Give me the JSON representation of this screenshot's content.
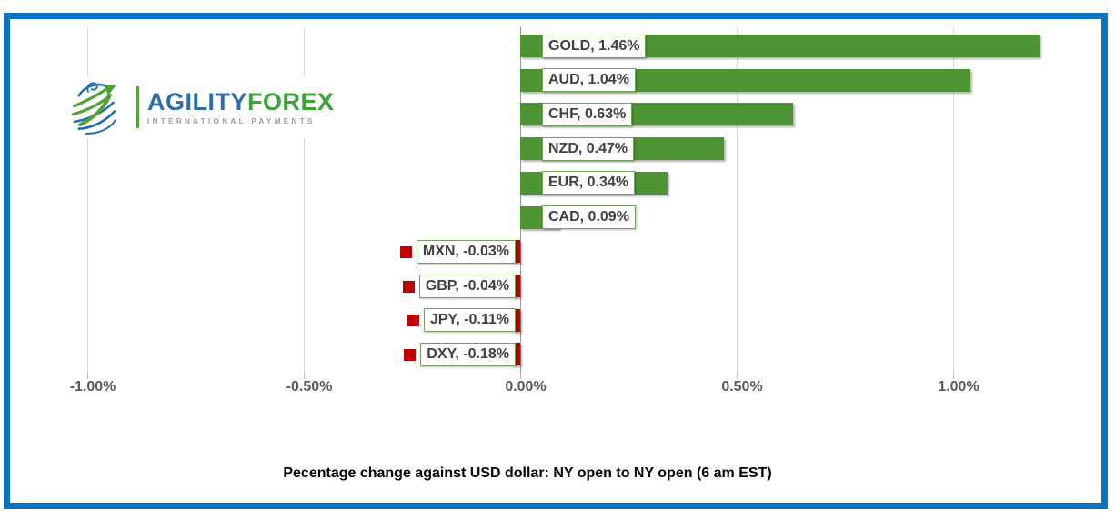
{
  "frame": {
    "border_color": "#0b72c0"
  },
  "logo": {
    "brand_part1": "AGILITY",
    "brand_part2": "FOREX",
    "tagline": "INTERNATIONAL PAYMENTS",
    "blue": "#2b6dad",
    "green": "#3aa335"
  },
  "title": "Pecentage change against USD dollar: NY open to NY open  (6 am EST)",
  "chart_data": {
    "type": "bar",
    "orientation": "horizontal",
    "title": "Pecentage change against USD dollar: NY open to NY open  (6 am EST)",
    "categories": [
      "GOLD",
      "AUD",
      "CHF",
      "NZD",
      "EUR",
      "CAD",
      "MXN",
      "GBP",
      "JPY",
      "DXY"
    ],
    "values": [
      1.46,
      1.04,
      0.63,
      0.47,
      0.34,
      0.09,
      -0.03,
      -0.04,
      -0.11,
      -0.18
    ],
    "labels": [
      "GOLD, 1.46%",
      "AUD, 1.04%",
      "CHF, 0.63%",
      "NZD, 0.47%",
      "EUR, 0.34%",
      "CAD, 0.09%",
      "MXN, -0.03%",
      "GBP, -0.04%",
      "JPY, -0.11%",
      "DXY, -0.18%"
    ],
    "x_ticks": [
      "-1.00%",
      "-0.50%",
      "0.00%",
      "0.50%",
      "1.00%"
    ],
    "x_tick_values": [
      -1.0,
      -0.5,
      0.0,
      0.5,
      1.0
    ],
    "xlim": [
      -1.13,
      1.2
    ],
    "grid": true,
    "legend_position": "none",
    "positive_color": "#4e9434",
    "negative_color": "#c00000",
    "label_border_color": "#71a45a",
    "gridline_color": "#d9d9d9",
    "axis_text_color": "#595959"
  }
}
